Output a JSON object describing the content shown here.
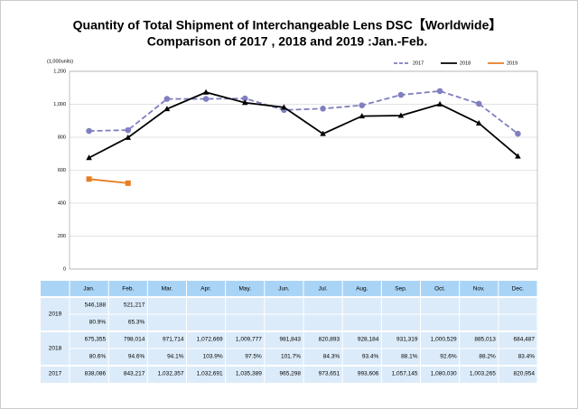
{
  "chart_data": {
    "type": "line",
    "title": "Quantity of Total Shipment of Interchangeable Lens DSC【Worldwide】",
    "subtitle": "Comparison of 2017 , 2018 and 2019 :Jan.-Feb.",
    "y_label": "(1,000units)",
    "categories": [
      "Jan.",
      "Feb.",
      "Mar.",
      "Apr.",
      "May.",
      "Jun.",
      "Jul.",
      "Aug.",
      "Sep.",
      "Oct.",
      "Nov.",
      "Dec."
    ],
    "ylim": [
      0,
      1200
    ],
    "yticks": [
      0,
      200,
      400,
      600,
      800,
      {
        "value": 1000,
        "label": "1,000"
      },
      {
        "value": 1200,
        "label": "1,200"
      }
    ],
    "grid": true,
    "legend": "top-right",
    "series": [
      {
        "name": "2017",
        "color": "#7f7fc0",
        "dash": true,
        "marker": "circle",
        "values": [
          838.086,
          843.217,
          1032.357,
          1032.691,
          1035.389,
          965.298,
          973.651,
          993.606,
          1057.145,
          1080.03,
          1003.265,
          820.954
        ],
        "value_labels": [
          "838,086",
          "843,217",
          "1,032,357",
          "1,032,691",
          "1,035,389",
          "965,298",
          "973,651",
          "993,606",
          "1,057,145",
          "1,080,030",
          "1,003,265",
          "820,954"
        ]
      },
      {
        "name": "2018",
        "color": "#000000",
        "dash": false,
        "marker": "triangle",
        "values": [
          675.355,
          798.014,
          971.714,
          1072.669,
          1009.777,
          981.843,
          820.893,
          928.184,
          931.319,
          1000.529,
          885.013,
          684.487
        ],
        "value_labels": [
          "675,355",
          "798,014",
          "971,714",
          "1,072,669",
          "1,009,777",
          "981,843",
          "820,893",
          "928,184",
          "931,319",
          "1,000,529",
          "885,013",
          "684,487"
        ],
        "ratios": [
          80.6,
          94.6,
          94.1,
          103.9,
          97.5,
          101.7,
          84.3,
          93.4,
          88.1,
          92.6,
          88.2,
          83.4
        ],
        "ratio_labels": [
          "80.6%",
          "94.6%",
          "94.1%",
          "103.9%",
          "97.5%",
          "101.7%",
          "84.3%",
          "93.4%",
          "88.1%",
          "92.6%",
          "88.2%",
          "83.4%"
        ]
      },
      {
        "name": "2019",
        "color": "#e67e22",
        "dash": false,
        "marker": "square",
        "values": [
          546.188,
          521.217,
          null,
          null,
          null,
          null,
          null,
          null,
          null,
          null,
          null,
          null
        ],
        "value_labels": [
          "546,188",
          "521,217",
          null,
          null,
          null,
          null,
          null,
          null,
          null,
          null,
          null,
          null
        ],
        "ratios": [
          80.9,
          65.3,
          null,
          null,
          null,
          null,
          null,
          null,
          null,
          null,
          null,
          null
        ],
        "ratio_labels": [
          "80.9%",
          "65.3%",
          null,
          null,
          null,
          null,
          null,
          null,
          null,
          null,
          null,
          null
        ]
      }
    ]
  }
}
